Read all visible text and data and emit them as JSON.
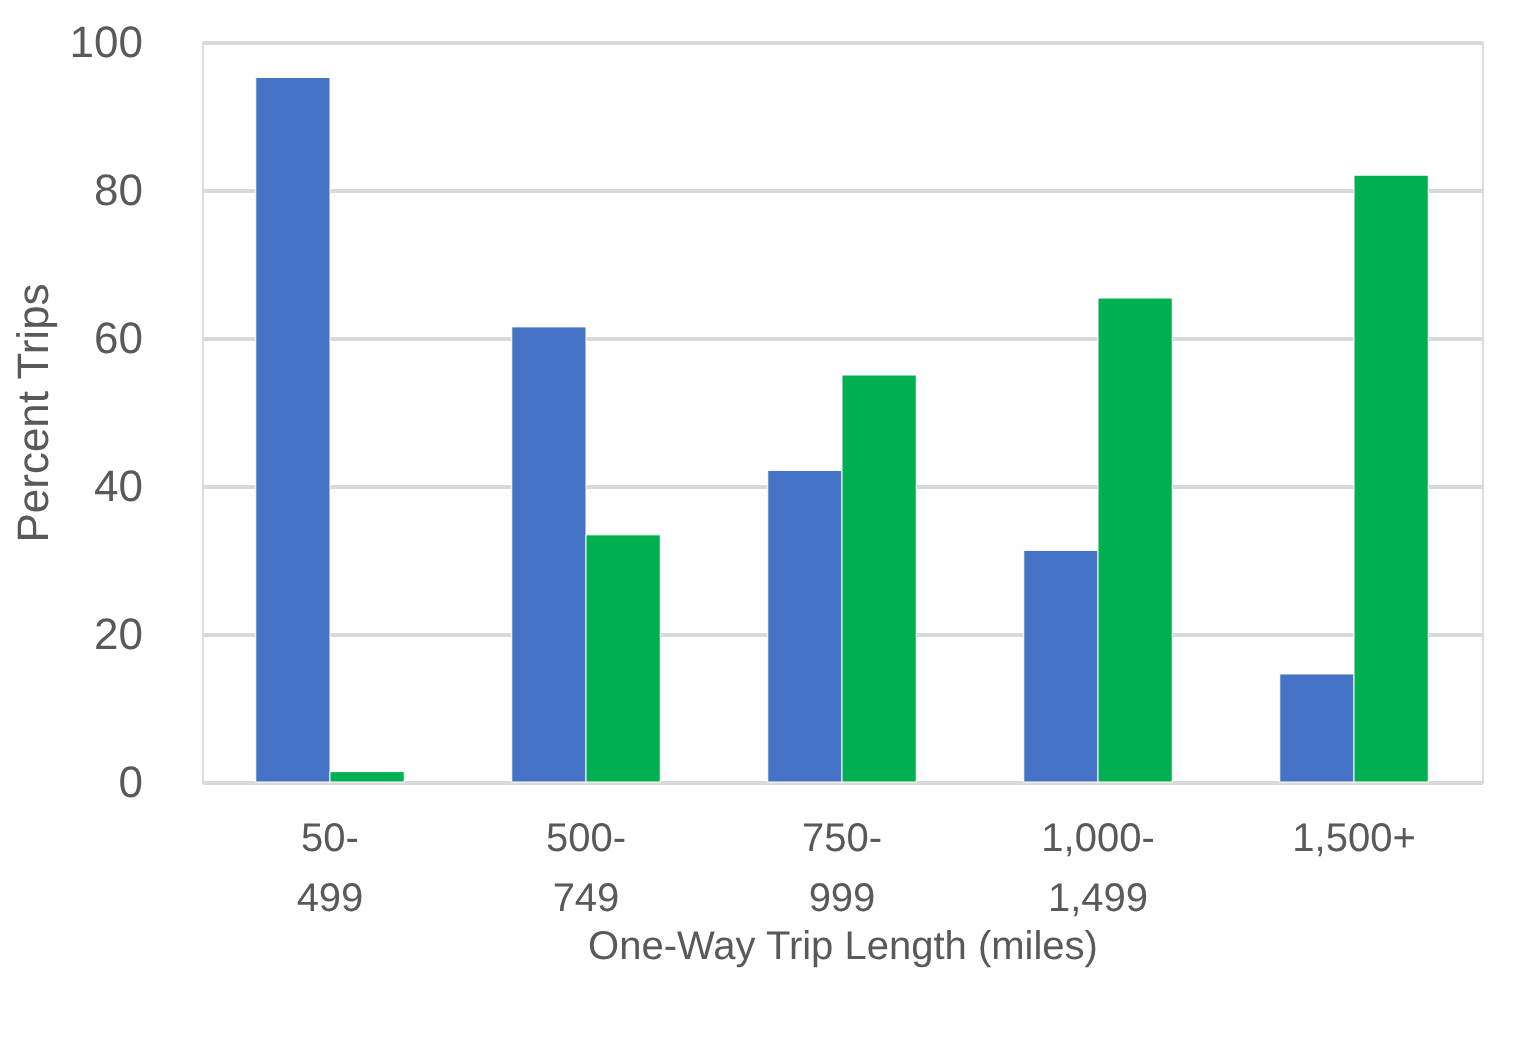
{
  "chart_data": {
    "type": "bar",
    "xlabel": "One-Way Trip Length (miles)",
    "ylabel": "Percent Trips",
    "categories": [
      "50-499",
      "500-749",
      "750-999",
      "1,000-1,499",
      "1,500+"
    ],
    "series": [
      {
        "color": "#4472c4",
        "values": [
          95.2,
          61.5,
          42.1,
          31.3,
          14.6
        ]
      },
      {
        "color": "#00b050",
        "values": [
          1.4,
          33.4,
          55.0,
          65.4,
          82.0
        ]
      }
    ],
    "ylim": [
      0,
      100
    ],
    "yticks": [
      0,
      20,
      40,
      60,
      80,
      100
    ],
    "grid": "y",
    "legend": false
  }
}
